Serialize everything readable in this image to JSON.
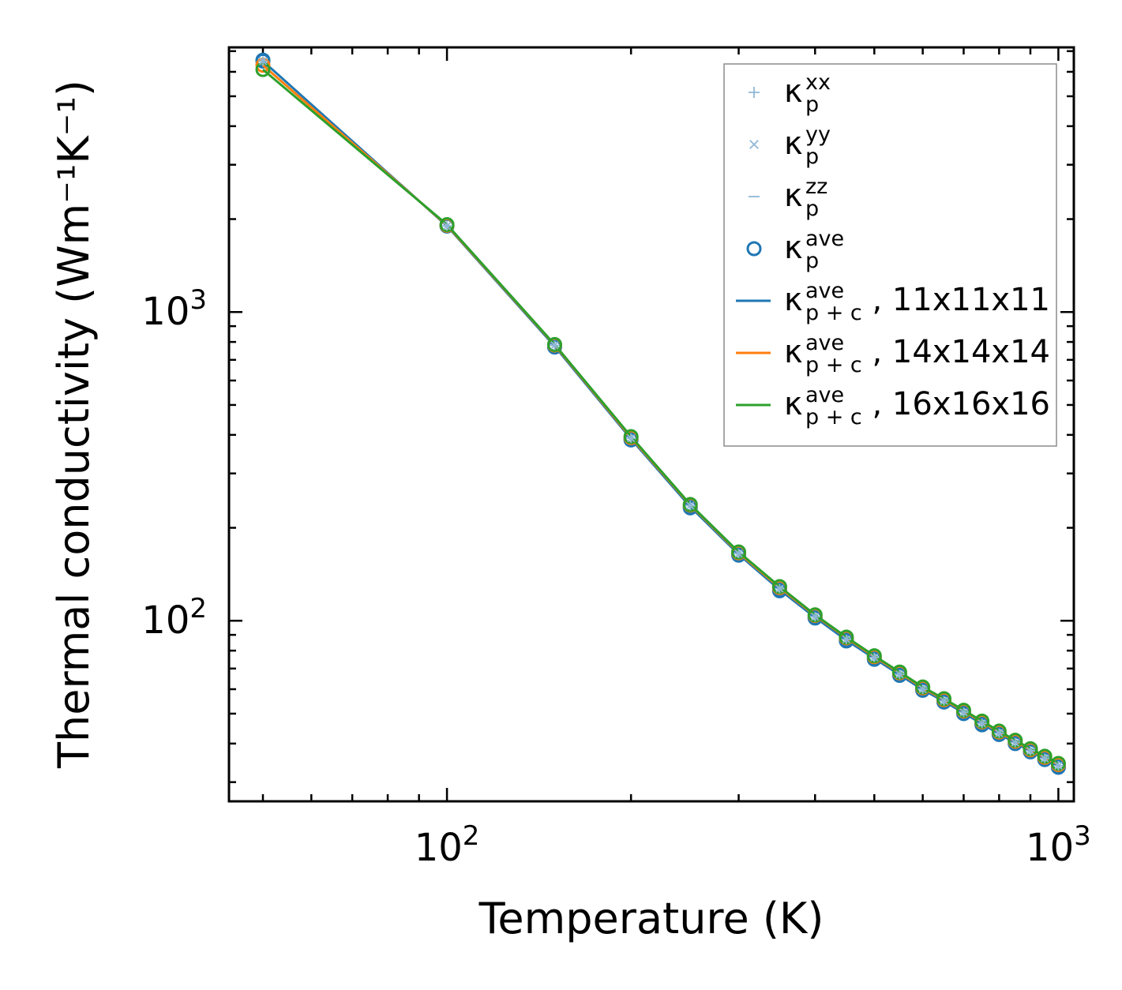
{
  "chart_data": {
    "type": "line",
    "xscale": "log",
    "yscale": "log",
    "xlabel": "Temperature (K)",
    "ylabel": "Thermal conductivity (Wm⁻¹K⁻¹)",
    "xlim": [
      44,
      1060
    ],
    "ylim": [
      26,
      7200
    ],
    "x_ticks": [
      {
        "base": "10",
        "exp": "2",
        "value": 100
      },
      {
        "base": "10",
        "exp": "3",
        "value": 1000
      }
    ],
    "y_ticks": [
      {
        "base": "10",
        "exp": "2",
        "value": 100
      },
      {
        "base": "10",
        "exp": "3",
        "value": 1000
      }
    ],
    "x": [
      50,
      100,
      150,
      200,
      250,
      300,
      350,
      400,
      450,
      500,
      550,
      600,
      650,
      700,
      750,
      800,
      850,
      900,
      950,
      1000
    ],
    "series": [
      {
        "name": "κp^xx",
        "kind": "marker",
        "marker": "plus",
        "color": "#8fb7d6",
        "values": [
          6500,
          1900,
          780,
          390,
          236,
          165,
          127,
          103,
          87,
          76,
          67,
          60,
          55,
          50.5,
          46.5,
          43.2,
          40.3,
          37.9,
          35.8,
          33.9
        ]
      },
      {
        "name": "κp^yy",
        "kind": "marker",
        "marker": "x",
        "color": "#8fb7d6",
        "values": [
          6500,
          1900,
          780,
          390,
          236,
          165,
          127,
          103,
          87,
          76,
          67,
          60,
          55,
          50.5,
          46.5,
          43.2,
          40.3,
          37.9,
          35.8,
          33.9
        ]
      },
      {
        "name": "κp^zz",
        "kind": "marker",
        "marker": "hline",
        "color": "#8fb7d6",
        "values": [
          6500,
          1900,
          780,
          390,
          236,
          165,
          127,
          103,
          87,
          76,
          67,
          60,
          55,
          50.5,
          46.5,
          43.2,
          40.3,
          37.9,
          35.8,
          33.9
        ]
      },
      {
        "name": "κp^ave",
        "kind": "marker",
        "marker": "circle",
        "color": "#1f77b4",
        "values": [
          6550,
          1900,
          770,
          385,
          232,
          163,
          125,
          102,
          86,
          75,
          66.5,
          59.5,
          54.5,
          50,
          46,
          42.8,
          40,
          37.6,
          35.5,
          33.5
        ]
      },
      {
        "name": "κp+c^ave, 11x11x11",
        "kind": "line",
        "marker": "circle",
        "color": "#1f77b4",
        "values": [
          6500,
          1900,
          775,
          388,
          234,
          164,
          126,
          102.5,
          86.5,
          75.5,
          66.8,
          59.8,
          54.8,
          50.3,
          46.3,
          43,
          40.2,
          37.8,
          35.7,
          33.8
        ]
      },
      {
        "name": "κp+c^ave, 14x14x14",
        "kind": "line",
        "marker": "circle",
        "color": "#ff7f0e",
        "values": [
          6300,
          1910,
          782,
          392,
          237,
          166,
          128,
          104,
          88,
          76.5,
          67.8,
          60.6,
          55.5,
          51,
          47,
          43.6,
          40.7,
          38.2,
          36.1,
          34.2
        ]
      },
      {
        "name": "κp+c^ave, 16x16x16",
        "kind": "line",
        "marker": "circle",
        "color": "#2ca02c",
        "values": [
          6100,
          1920,
          785,
          395,
          238,
          167,
          129,
          104.5,
          88.5,
          77,
          68.2,
          61,
          55.9,
          51.3,
          47.3,
          43.9,
          41,
          38.5,
          36.4,
          34.5
        ]
      }
    ],
    "legend": {
      "position": "top-right",
      "entries": [
        {
          "sym": "κ",
          "sub": "p",
          "sup": "xx",
          "suffix": "",
          "swatch": "plus",
          "color": "#8fb7d6"
        },
        {
          "sym": "κ",
          "sub": "p",
          "sup": "yy",
          "suffix": "",
          "swatch": "x",
          "color": "#8fb7d6"
        },
        {
          "sym": "κ",
          "sub": "p",
          "sup": "zz",
          "suffix": "",
          "swatch": "hline",
          "color": "#8fb7d6"
        },
        {
          "sym": "κ",
          "sub": "p",
          "sup": "ave",
          "suffix": "",
          "swatch": "circle",
          "color": "#1f77b4"
        },
        {
          "sym": "κ",
          "sub": "p + c",
          "sup": "ave",
          "suffix": ", 11x11x11",
          "swatch": "line",
          "color": "#1f77b4"
        },
        {
          "sym": "κ",
          "sub": "p + c",
          "sup": "ave",
          "suffix": ", 14x14x14",
          "swatch": "line",
          "color": "#ff7f0e"
        },
        {
          "sym": "κ",
          "sub": "p + c",
          "sup": "ave",
          "suffix": ", 16x16x16",
          "swatch": "line",
          "color": "#2ca02c"
        }
      ]
    }
  }
}
